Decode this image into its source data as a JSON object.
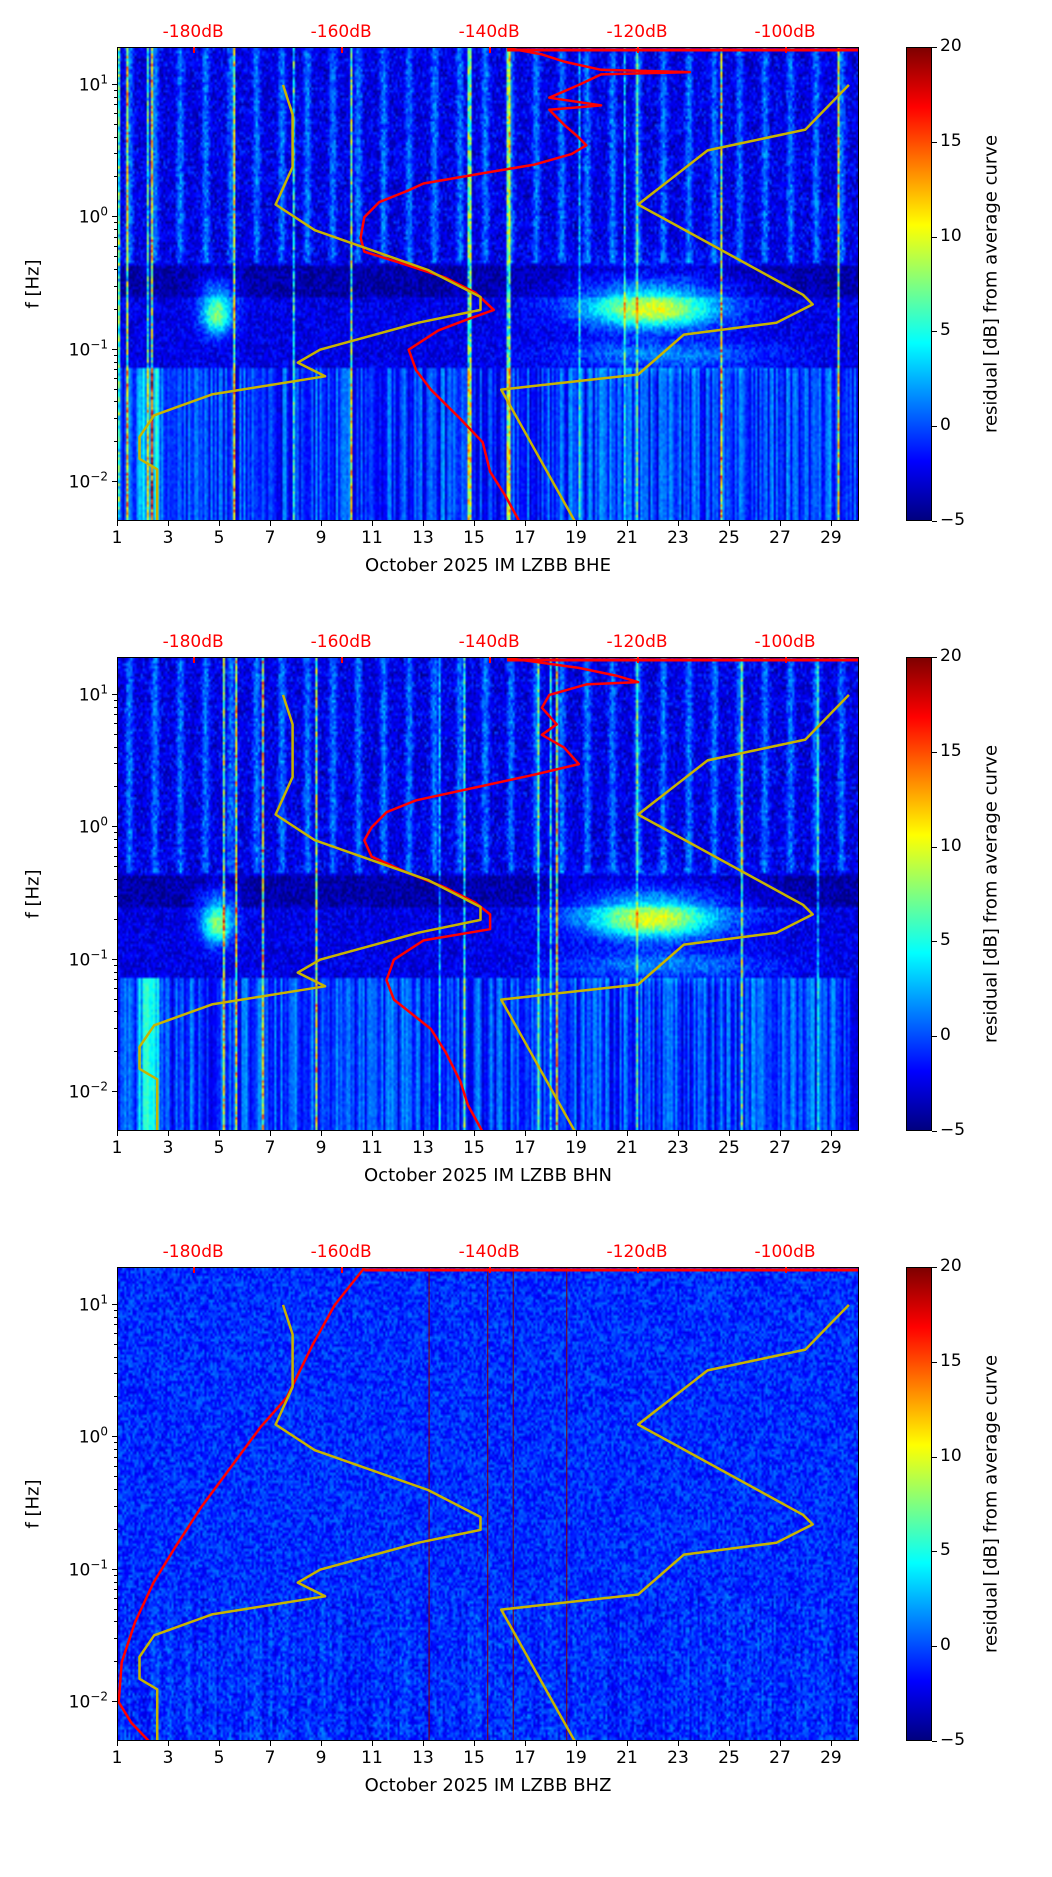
{
  "chart_data": [
    {
      "type": "heatmap",
      "xlabel": "October 2025 IM LZBB  BHE",
      "ylabel": "f [Hz]",
      "xlim": [
        1,
        30.1
      ],
      "ylim": [
        0.005,
        19
      ],
      "yscale": "log",
      "x_ticks": [
        "1",
        "3",
        "5",
        "7",
        "9",
        "11",
        "13",
        "15",
        "17",
        "19",
        "21",
        "23",
        "25",
        "27",
        "29"
      ],
      "y_ticks": [
        {
          "base": "10",
          "exp": "1",
          "value": 10
        },
        {
          "base": "10",
          "exp": "0",
          "value": 1
        },
        {
          "base": "10",
          "exp": "−1",
          "value": 0.1
        },
        {
          "base": "10",
          "exp": "−2",
          "value": 0.01
        }
      ],
      "top_axis": {
        "labels": [
          "-180dB",
          "-160dB",
          "-140dB",
          "-120dB",
          "-100dB"
        ],
        "values": [
          -180,
          -160,
          -140,
          -120,
          -100
        ],
        "lim": [
          -190.3,
          -90
        ]
      },
      "colorbar": {
        "label": "residual [dB] from average curve",
        "lim": [
          -5,
          20
        ],
        "ticks": [
          "20",
          "15",
          "10",
          "5",
          "0",
          "−5"
        ]
      },
      "curves": {
        "psd": {
          "color": "#ff0000",
          "points": [
            [
              19,
              -137.7
            ],
            [
              17,
              -133
            ],
            [
              15,
              -130
            ],
            [
              13,
              -125
            ],
            [
              12.5,
              -113
            ],
            [
              12,
              -125
            ],
            [
              10,
              -128
            ],
            [
              8,
              -132
            ],
            [
              7,
              -125
            ],
            [
              6.5,
              -132
            ],
            [
              5,
              -130
            ],
            [
              4,
              -128
            ],
            [
              3.5,
              -127
            ],
            [
              3,
              -129
            ],
            [
              2.5,
              -134
            ],
            [
              2.2,
              -140
            ],
            [
              1.8,
              -149
            ],
            [
              1.6,
              -151
            ],
            [
              1.3,
              -155
            ],
            [
              1.0,
              -157
            ],
            [
              0.7,
              -157.5
            ],
            [
              0.55,
              -157
            ],
            [
              0.45,
              -152
            ],
            [
              0.35,
              -146
            ],
            [
              0.27,
              -142
            ],
            [
              0.2,
              -139.5
            ],
            [
              0.17,
              -143
            ],
            [
              0.14,
              -147
            ],
            [
              0.1,
              -151
            ],
            [
              0.07,
              -150
            ],
            [
              0.05,
              -148
            ],
            [
              0.03,
              -144
            ],
            [
              0.02,
              -141
            ],
            [
              0.012,
              -140
            ],
            [
              0.008,
              -138
            ],
            [
              0.005,
              -136
            ]
          ]
        },
        "low_model": {
          "color": "#c8b400",
          "points": [
            [
              10,
              -168
            ],
            [
              6,
              -166.7
            ],
            [
              2.4,
              -166.7
            ],
            [
              1.25,
              -169
            ],
            [
              0.8,
              -163.7
            ],
            [
              0.4,
              -148.4
            ],
            [
              0.25,
              -141.3
            ],
            [
              0.2,
              -141.3
            ],
            [
              0.16,
              -149.7
            ],
            [
              0.1,
              -163
            ],
            [
              0.08,
              -166
            ],
            [
              0.063,
              -162.3
            ],
            [
              0.046,
              -177.6
            ],
            [
              0.032,
              -185.4
            ],
            [
              0.022,
              -187.4
            ],
            [
              0.015,
              -187.4
            ],
            [
              0.0125,
              -185
            ],
            [
              0.005,
              -185
            ]
          ]
        },
        "high_model": {
          "color": "#c8b400",
          "points": [
            [
              10,
              -91.5
            ],
            [
              4.6,
              -97.4
            ],
            [
              3.2,
              -110.6
            ],
            [
              1.25,
              -120
            ],
            [
              0.26,
              -97.7
            ],
            [
              0.22,
              -96.4
            ],
            [
              0.16,
              -101.3
            ],
            [
              0.13,
              -113.8
            ],
            [
              0.065,
              -120
            ],
            [
              0.05,
              -138.5
            ],
            [
              0.005,
              -128.5
            ]
          ]
        }
      }
    },
    {
      "type": "heatmap",
      "xlabel": "October 2025 IM LZBB  BHN",
      "ylabel": "f [Hz]",
      "xlim": [
        1,
        30.1
      ],
      "ylim": [
        0.005,
        19
      ],
      "yscale": "log",
      "x_ticks": [
        "1",
        "3",
        "5",
        "7",
        "9",
        "11",
        "13",
        "15",
        "17",
        "19",
        "21",
        "23",
        "25",
        "27",
        "29"
      ],
      "y_ticks": [
        {
          "base": "10",
          "exp": "1",
          "value": 10
        },
        {
          "base": "10",
          "exp": "0",
          "value": 1
        },
        {
          "base": "10",
          "exp": "−1",
          "value": 0.1
        },
        {
          "base": "10",
          "exp": "−2",
          "value": 0.01
        }
      ],
      "top_axis": {
        "labels": [
          "-180dB",
          "-160dB",
          "-140dB",
          "-120dB",
          "-100dB"
        ],
        "values": [
          -180,
          -160,
          -140,
          -120,
          -100
        ],
        "lim": [
          -190.3,
          -90
        ]
      },
      "colorbar": {
        "label": "residual [dB] from average curve",
        "lim": [
          -5,
          20
        ],
        "ticks": [
          "20",
          "15",
          "10",
          "5",
          "0",
          "−5"
        ]
      },
      "curves": {
        "psd": {
          "color": "#ff0000",
          "points": [
            [
              19,
              -137.7
            ],
            [
              16,
              -128
            ],
            [
              14,
              -123
            ],
            [
              12.5,
              -120
            ],
            [
              12,
              -127
            ],
            [
              10,
              -132
            ],
            [
              8,
              -133
            ],
            [
              6,
              -131
            ],
            [
              5,
              -133
            ],
            [
              4,
              -130
            ],
            [
              3,
              -128
            ],
            [
              2.5,
              -134
            ],
            [
              2.0,
              -142
            ],
            [
              1.6,
              -150
            ],
            [
              1.3,
              -154
            ],
            [
              1.0,
              -156
            ],
            [
              0.8,
              -157
            ],
            [
              0.6,
              -156
            ],
            [
              0.45,
              -151
            ],
            [
              0.35,
              -146
            ],
            [
              0.27,
              -142
            ],
            [
              0.22,
              -140
            ],
            [
              0.17,
              -140
            ],
            [
              0.14,
              -149
            ],
            [
              0.1,
              -153
            ],
            [
              0.07,
              -154
            ],
            [
              0.05,
              -153
            ],
            [
              0.03,
              -148
            ],
            [
              0.02,
              -146
            ],
            [
              0.012,
              -144
            ],
            [
              0.008,
              -143
            ],
            [
              0.005,
              -141
            ]
          ]
        },
        "low_model": {
          "color": "#c8b400",
          "points": [
            [
              10,
              -168
            ],
            [
              6,
              -166.7
            ],
            [
              2.4,
              -166.7
            ],
            [
              1.25,
              -169
            ],
            [
              0.8,
              -163.7
            ],
            [
              0.4,
              -148.4
            ],
            [
              0.25,
              -141.3
            ],
            [
              0.2,
              -141.3
            ],
            [
              0.16,
              -149.7
            ],
            [
              0.1,
              -163
            ],
            [
              0.08,
              -166
            ],
            [
              0.063,
              -162.3
            ],
            [
              0.046,
              -177.6
            ],
            [
              0.032,
              -185.4
            ],
            [
              0.022,
              -187.4
            ],
            [
              0.015,
              -187.4
            ],
            [
              0.0125,
              -185
            ],
            [
              0.005,
              -185
            ]
          ]
        },
        "high_model": {
          "color": "#c8b400",
          "points": [
            [
              10,
              -91.5
            ],
            [
              4.6,
              -97.4
            ],
            [
              3.2,
              -110.6
            ],
            [
              1.25,
              -120
            ],
            [
              0.26,
              -97.7
            ],
            [
              0.22,
              -96.4
            ],
            [
              0.16,
              -101.3
            ],
            [
              0.13,
              -113.8
            ],
            [
              0.065,
              -120
            ],
            [
              0.05,
              -138.5
            ],
            [
              0.005,
              -128.5
            ]
          ]
        }
      }
    },
    {
      "type": "heatmap",
      "xlabel": "October 2025 IM LZBB  BHZ",
      "ylabel": "f [Hz]",
      "xlim": [
        1,
        30.1
      ],
      "ylim": [
        0.005,
        19
      ],
      "yscale": "log",
      "x_ticks": [
        "1",
        "3",
        "5",
        "7",
        "9",
        "11",
        "13",
        "15",
        "17",
        "19",
        "21",
        "23",
        "25",
        "27",
        "29"
      ],
      "y_ticks": [
        {
          "base": "10",
          "exp": "1",
          "value": 10
        },
        {
          "base": "10",
          "exp": "0",
          "value": 1
        },
        {
          "base": "10",
          "exp": "−1",
          "value": 0.1
        },
        {
          "base": "10",
          "exp": "−2",
          "value": 0.01
        }
      ],
      "top_axis": {
        "labels": [
          "-180dB",
          "-160dB",
          "-140dB",
          "-120dB",
          "-100dB"
        ],
        "values": [
          -180,
          -160,
          -140,
          -120,
          -100
        ],
        "lim": [
          -190.3,
          -90
        ]
      },
      "colorbar": {
        "label": "residual [dB] from average curve",
        "lim": [
          -5,
          20
        ],
        "ticks": [
          "20",
          "15",
          "10",
          "5",
          "0",
          "−5"
        ]
      },
      "curves": {
        "psd": {
          "color": "#ff0000",
          "points": [
            [
              19,
              -157
            ],
            [
              15,
              -158.5
            ],
            [
              10,
              -161
            ],
            [
              5,
              -164
            ],
            [
              2,
              -167.5
            ],
            [
              1.2,
              -171
            ],
            [
              0.6,
              -175
            ],
            [
              0.3,
              -179
            ],
            [
              0.15,
              -182.5
            ],
            [
              0.08,
              -185.5
            ],
            [
              0.04,
              -188
            ],
            [
              0.02,
              -189.8
            ],
            [
              0.01,
              -190.2
            ],
            [
              0.007,
              -188.5
            ],
            [
              0.005,
              -186
            ]
          ]
        },
        "low_model": {
          "color": "#c8b400",
          "points": [
            [
              10,
              -168
            ],
            [
              6,
              -166.7
            ],
            [
              2.4,
              -166.7
            ],
            [
              1.25,
              -169
            ],
            [
              0.8,
              -163.7
            ],
            [
              0.4,
              -148.4
            ],
            [
              0.25,
              -141.3
            ],
            [
              0.2,
              -141.3
            ],
            [
              0.16,
              -149.7
            ],
            [
              0.1,
              -163
            ],
            [
              0.08,
              -166
            ],
            [
              0.063,
              -162.3
            ],
            [
              0.046,
              -177.6
            ],
            [
              0.032,
              -185.4
            ],
            [
              0.022,
              -187.4
            ],
            [
              0.015,
              -187.4
            ],
            [
              0.0125,
              -185
            ],
            [
              0.005,
              -185
            ]
          ]
        },
        "high_model": {
          "color": "#c8b400",
          "points": [
            [
              10,
              -91.5
            ],
            [
              4.6,
              -97.4
            ],
            [
              3.2,
              -110.6
            ],
            [
              1.25,
              -120
            ],
            [
              0.26,
              -97.7
            ],
            [
              0.22,
              -96.4
            ],
            [
              0.16,
              -101.3
            ],
            [
              0.13,
              -113.8
            ],
            [
              0.065,
              -120
            ],
            [
              0.05,
              -138.5
            ],
            [
              0.005,
              -128.5
            ]
          ]
        }
      }
    }
  ]
}
